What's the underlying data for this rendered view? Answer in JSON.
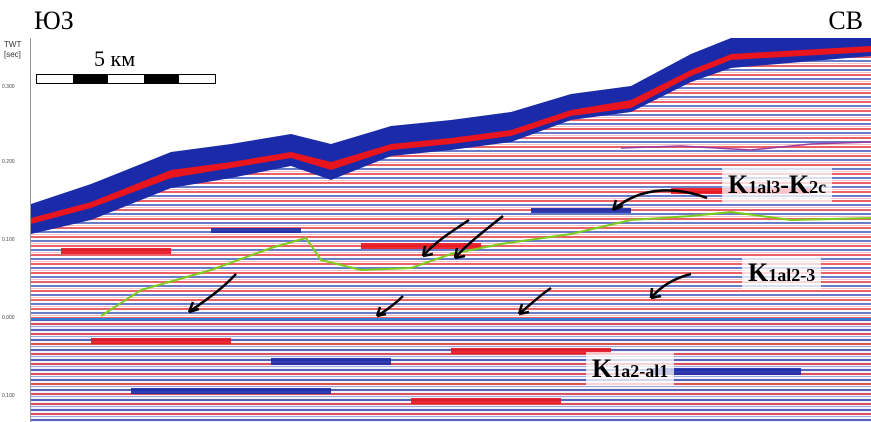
{
  "direction_left": "ЮЗ",
  "direction_right": "СВ",
  "axis_unit_line1": "TWT",
  "axis_unit_line2": "[sec]",
  "axis_ticks": [
    "0.300",
    "0.200",
    "0.100",
    "0.000",
    "0.100"
  ],
  "scale_bar_label": "5 км",
  "units": {
    "upper": {
      "k": "K",
      "sub1": "1al3",
      "sep": "-",
      "k2": "K",
      "sub2": "2c"
    },
    "middle": {
      "k": "K",
      "sub1": "1al2-3"
    },
    "lower": {
      "k": "K",
      "sub1": "1a2-al1"
    }
  },
  "colors": {
    "strong_positive": "#e8141e",
    "strong_negative": "#1a2aa8",
    "horizon_green": "#7ccc1a",
    "horizon_blue": "#2f7fd6",
    "horizon_purple": "#9b3aa0",
    "arrow": "#000000"
  }
}
